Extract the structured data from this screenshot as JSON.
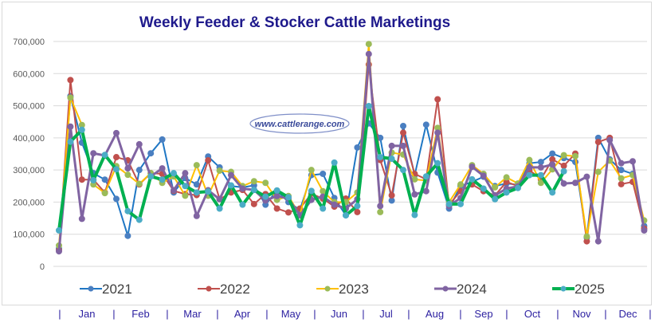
{
  "chart_data": {
    "type": "line",
    "title": "Weekly Feeder & Stocker Cattle Marketings",
    "watermark": "www.cattlerange.com",
    "xlabel": "",
    "ylabel": "",
    "ylim": [
      0,
      700000
    ],
    "yticks": [
      "0",
      "100,000",
      "200,000",
      "300,000",
      "400,000",
      "500,000",
      "600,000",
      "700,000"
    ],
    "x_weeks": 52,
    "month_labels": [
      "Jan",
      "Feb",
      "Mar",
      "Apr",
      "May",
      "Jun",
      "Jul",
      "Aug",
      "Sep",
      "Oct",
      "Nov",
      "Dec"
    ],
    "month_separator": "|",
    "grid": true,
    "legend_position": "bottom",
    "series": [
      {
        "name": "2021",
        "color": "#1f77c4",
        "marker": "#4a7fc1",
        "width": 2,
        "values": [
          55000,
          530000,
          385000,
          290000,
          270000,
          210000,
          95000,
          300000,
          352000,
          395000,
          230000,
          275000,
          255000,
          342000,
          308000,
          250000,
          246000,
          252000,
          192000,
          236000,
          200000,
          176000,
          284000,
          288000,
          213000,
          159000,
          370000,
          445000,
          400000,
          205000,
          437000,
          284000,
          441000,
          292000,
          180000,
          250000,
          263000,
          279000,
          250000,
          258000,
          254000,
          321000,
          325000,
          351000,
          337000,
          325000,
          90000,
          400000,
          333000,
          300000,
          288000,
          126000
        ]
      },
      {
        "name": "2022",
        "color": "#c0504d",
        "marker": "#c0504d",
        "width": 2,
        "values": [
          50000,
          580000,
          270000,
          270000,
          230000,
          340000,
          330000,
          255000,
          290000,
          288000,
          235000,
          225000,
          222000,
          330000,
          209000,
          230000,
          238000,
          194000,
          225000,
          180000,
          168000,
          180000,
          226000,
          211000,
          186000,
          211000,
          169000,
          628000,
          331000,
          221000,
          416000,
          288000,
          271000,
          520000,
          192000,
          234000,
          255000,
          234000,
          221000,
          263000,
          250000,
          300000,
          271000,
          333000,
          313000,
          351000,
          78000,
          387000,
          400000,
          256000,
          263000,
          118000
        ]
      },
      {
        "name": "2023",
        "color": "#ffc000",
        "marker": "#9bbb59",
        "width": 2,
        "values": [
          65000,
          525000,
          440000,
          255000,
          228000,
          312000,
          285000,
          257000,
          290000,
          260000,
          280000,
          220000,
          315000,
          220000,
          298000,
          294000,
          250000,
          265000,
          260000,
          207000,
          219000,
          159000,
          300000,
          234000,
          200000,
          200000,
          230000,
          692000,
          169000,
          354000,
          348000,
          271000,
          267000,
          431000,
          200000,
          255000,
          315000,
          288000,
          246000,
          277000,
          258000,
          331000,
          260000,
          302000,
          346000,
          343000,
          93000,
          294000,
          329000,
          274000,
          284000,
          143000
        ]
      },
      {
        "name": "2024",
        "color": "#8064a2",
        "marker": "#8064a2",
        "width": 3,
        "values": [
          47000,
          435000,
          148000,
          352000,
          345000,
          415000,
          305000,
          380000,
          280000,
          305000,
          237000,
          290000,
          157000,
          237000,
          209000,
          284000,
          242000,
          238000,
          205000,
          219000,
          211000,
          159000,
          207000,
          217000,
          192000,
          180000,
          209000,
          661000,
          188000,
          375000,
          375000,
          224000,
          234000,
          416000,
          188000,
          213000,
          310000,
          282000,
          221000,
          242000,
          249000,
          308000,
          308000,
          317000,
          258000,
          260000,
          279000,
          78000,
          393000,
          321000,
          327000,
          112000
        ]
      },
      {
        "name": "2025",
        "color": "#00b050",
        "marker": "#4bacc6",
        "width": 4,
        "values": [
          112000,
          388000,
          425000,
          268000,
          347000,
          302000,
          172000,
          145000,
          280000,
          270000,
          290000,
          250000,
          230000,
          233000,
          180000,
          252000,
          192000,
          238000,
          217000,
          236000,
          215000,
          128000,
          235000,
          180000,
          323000,
          159000,
          188000,
          499000,
          340000,
          335000,
          300000,
          160000,
          280000,
          321000,
          194000,
          194000,
          271000,
          242000,
          209000,
          230000,
          244000,
          284000,
          284000,
          230000,
          296000
        ]
      }
    ]
  }
}
